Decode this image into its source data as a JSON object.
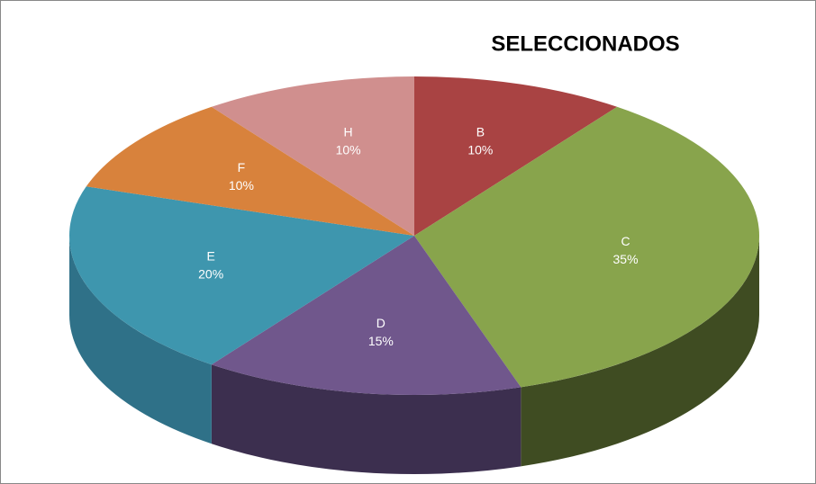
{
  "chart_data": {
    "type": "pie",
    "title": "SELECCIONADOS",
    "categories": [
      "B",
      "C",
      "D",
      "E",
      "F",
      "H"
    ],
    "values": [
      10,
      35,
      15,
      20,
      10,
      10
    ],
    "value_labels": [
      "10%",
      "35%",
      "15%",
      "20%",
      "10%",
      "10%"
    ],
    "colors": [
      "#a94343",
      "#88a44c",
      "#70578c",
      "#3e96ae",
      "#d8823c",
      "#d08f8e"
    ],
    "side_colors": [
      "#7a2e2e",
      "#3f4c22",
      "#3c2f4f",
      "#2f7188",
      "#9c5a25",
      "#9a6463"
    ]
  }
}
